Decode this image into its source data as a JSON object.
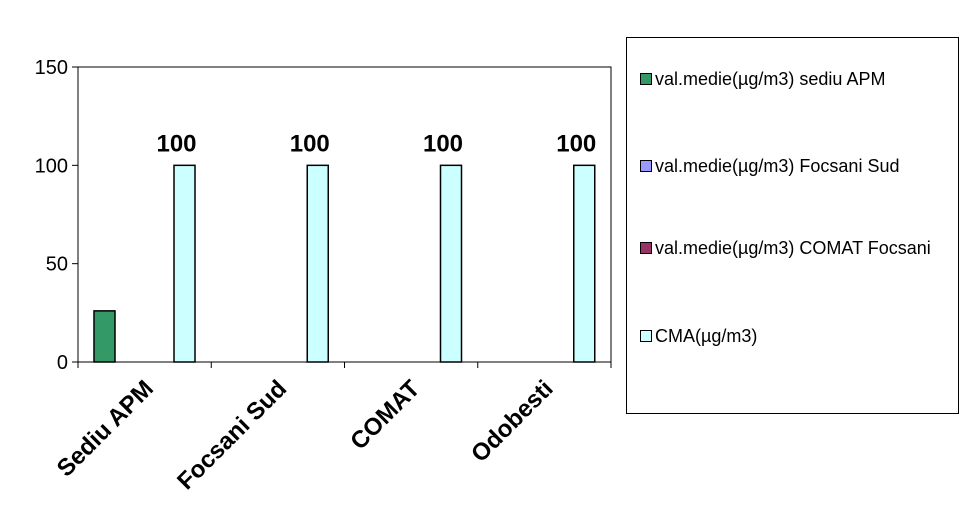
{
  "chart_data": {
    "type": "bar",
    "categories": [
      "Sediu APM",
      "Focsani Sud",
      "COMAT",
      "Odobesti"
    ],
    "series": [
      {
        "name": "val.medie(µg/m3) sediu APM",
        "color": "#339966",
        "values": [
          26,
          null,
          null,
          null
        ]
      },
      {
        "name": "val.medie(µg/m3) Focsani Sud",
        "color": "#9999ff",
        "values": [
          null,
          null,
          null,
          null
        ]
      },
      {
        "name": "val.medie(µg/m3) COMAT Focsani",
        "color": "#993366",
        "values": [
          null,
          null,
          null,
          null
        ]
      },
      {
        "name": "CMA(µg/m3)",
        "color": "#ccffff",
        "values": [
          100,
          100,
          100,
          100
        ]
      }
    ],
    "data_labels": [
      "100",
      "100",
      "100",
      "100"
    ],
    "y_ticks": [
      "0",
      "50",
      "100",
      "150"
    ],
    "ylim": [
      0,
      150
    ],
    "grid": false,
    "legend_position": "right"
  }
}
